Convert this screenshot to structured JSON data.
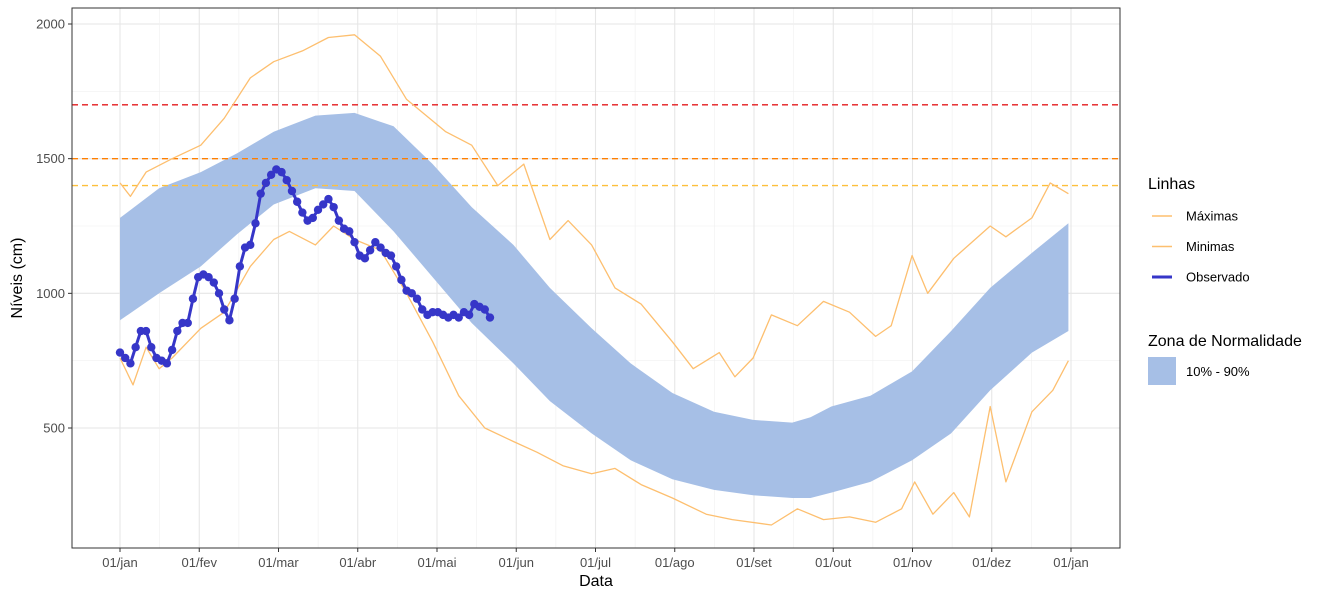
{
  "chart_data": {
    "type": "line",
    "xlabel": "Data",
    "ylabel": "Níveis (cm)",
    "x_ticks": [
      "01/jan",
      "01/fev",
      "01/mar",
      "01/abr",
      "01/mai",
      "01/jun",
      "01/jul",
      "01/ago",
      "01/set",
      "01/out",
      "01/nov",
      "01/dez",
      "01/jan"
    ],
    "y_ticks": [
      500,
      1000,
      1500,
      2000
    ],
    "ylim": [
      70,
      2050
    ],
    "xlim_days": [
      -18,
      379
    ],
    "grid": true,
    "legend": {
      "placement": "right",
      "lines_title": "Linhas",
      "zone_title": "Zona de Normalidade",
      "items": [
        {
          "label": "Máximas",
          "color": "#fdbf6f"
        },
        {
          "label": "Minimas",
          "color": "#fdbf6f"
        },
        {
          "label": "Observado",
          "color": "#3636c8"
        }
      ],
      "zone_label": "10% - 90%"
    },
    "reference_lines": [
      {
        "y": 1700,
        "color": "#e41a1c"
      },
      {
        "y": 1500,
        "color": "#ff7f00"
      },
      {
        "y": 1400,
        "color": "#fdbf3c"
      }
    ],
    "band": {
      "name": "10% - 90%",
      "color": "#a6bfe6",
      "x": [
        0,
        15,
        31,
        45,
        59,
        75,
        90,
        105,
        120,
        135,
        151,
        165,
        181,
        196,
        212,
        228,
        243,
        258,
        265,
        273,
        288,
        304,
        319,
        334,
        350,
        364
      ],
      "upper": [
        1280,
        1390,
        1450,
        1520,
        1600,
        1660,
        1670,
        1620,
        1480,
        1320,
        1180,
        1020,
        870,
        740,
        630,
        560,
        530,
        520,
        540,
        580,
        620,
        710,
        860,
        1020,
        1150,
        1260
      ],
      "lower": [
        900,
        1000,
        1100,
        1220,
        1330,
        1390,
        1380,
        1230,
        1060,
        890,
        740,
        600,
        480,
        380,
        310,
        270,
        250,
        240,
        240,
        260,
        300,
        380,
        480,
        640,
        780,
        860
      ]
    },
    "series": [
      {
        "name": "Máximas",
        "color": "#fdbf6f",
        "x": [
          0,
          4,
          10,
          20,
          31,
          40,
          50,
          59,
          70,
          80,
          90,
          100,
          110,
          125,
          135,
          145,
          155,
          165,
          172,
          181,
          190,
          200,
          212,
          220,
          230,
          236,
          243,
          250,
          260,
          270,
          280,
          290,
          296,
          304,
          310,
          320,
          334,
          340,
          350,
          357,
          364
        ],
        "values": [
          1410,
          1360,
          1450,
          1500,
          1550,
          1650,
          1800,
          1860,
          1900,
          1950,
          1960,
          1880,
          1720,
          1600,
          1550,
          1400,
          1480,
          1200,
          1270,
          1180,
          1020,
          960,
          820,
          720,
          780,
          690,
          760,
          920,
          880,
          970,
          930,
          840,
          880,
          1140,
          1000,
          1130,
          1250,
          1210,
          1280,
          1410,
          1370
        ]
      },
      {
        "name": "Minimas",
        "color": "#fdbf6f",
        "x": [
          0,
          5,
          10,
          15,
          20,
          31,
          40,
          50,
          59,
          65,
          75,
          82,
          90,
          100,
          110,
          120,
          130,
          140,
          151,
          160,
          170,
          181,
          190,
          200,
          212,
          225,
          235,
          250,
          260,
          270,
          280,
          290,
          300,
          305,
          312,
          320,
          326,
          334,
          340,
          350,
          358,
          364
        ],
        "values": [
          760,
          660,
          800,
          720,
          760,
          870,
          930,
          1100,
          1200,
          1230,
          1180,
          1250,
          1200,
          1160,
          1000,
          820,
          620,
          500,
          450,
          410,
          360,
          330,
          350,
          290,
          240,
          180,
          160,
          140,
          200,
          160,
          170,
          150,
          200,
          300,
          180,
          260,
          170,
          580,
          300,
          560,
          640,
          750
        ]
      },
      {
        "name": "Observado",
        "color": "#3636c8",
        "x": [
          0,
          2,
          4,
          6,
          8,
          10,
          12,
          14,
          16,
          18,
          20,
          22,
          24,
          26,
          28,
          30,
          32,
          34,
          36,
          38,
          40,
          42,
          44,
          46,
          48,
          50,
          52,
          54,
          56,
          58,
          60,
          62,
          64,
          66,
          68,
          70,
          72,
          74,
          76,
          78,
          80,
          82,
          84,
          86,
          88,
          90,
          92,
          94,
          96,
          98,
          100,
          102,
          104,
          106,
          108,
          110,
          112,
          114,
          116,
          118,
          120,
          122,
          124,
          126,
          128,
          130,
          132,
          134,
          136,
          138,
          140,
          142
        ],
        "values": [
          780,
          760,
          740,
          800,
          860,
          860,
          800,
          760,
          750,
          740,
          790,
          860,
          890,
          890,
          980,
          1060,
          1070,
          1060,
          1040,
          1000,
          940,
          900,
          980,
          1100,
          1170,
          1180,
          1260,
          1370,
          1410,
          1440,
          1460,
          1450,
          1420,
          1380,
          1340,
          1300,
          1270,
          1280,
          1310,
          1330,
          1350,
          1320,
          1270,
          1240,
          1230,
          1190,
          1140,
          1130,
          1160,
          1190,
          1170,
          1150,
          1140,
          1100,
          1050,
          1010,
          1000,
          980,
          940,
          920,
          930,
          930,
          920,
          910,
          920,
          910,
          930,
          920,
          960,
          950,
          940,
          910
        ]
      }
    ]
  }
}
